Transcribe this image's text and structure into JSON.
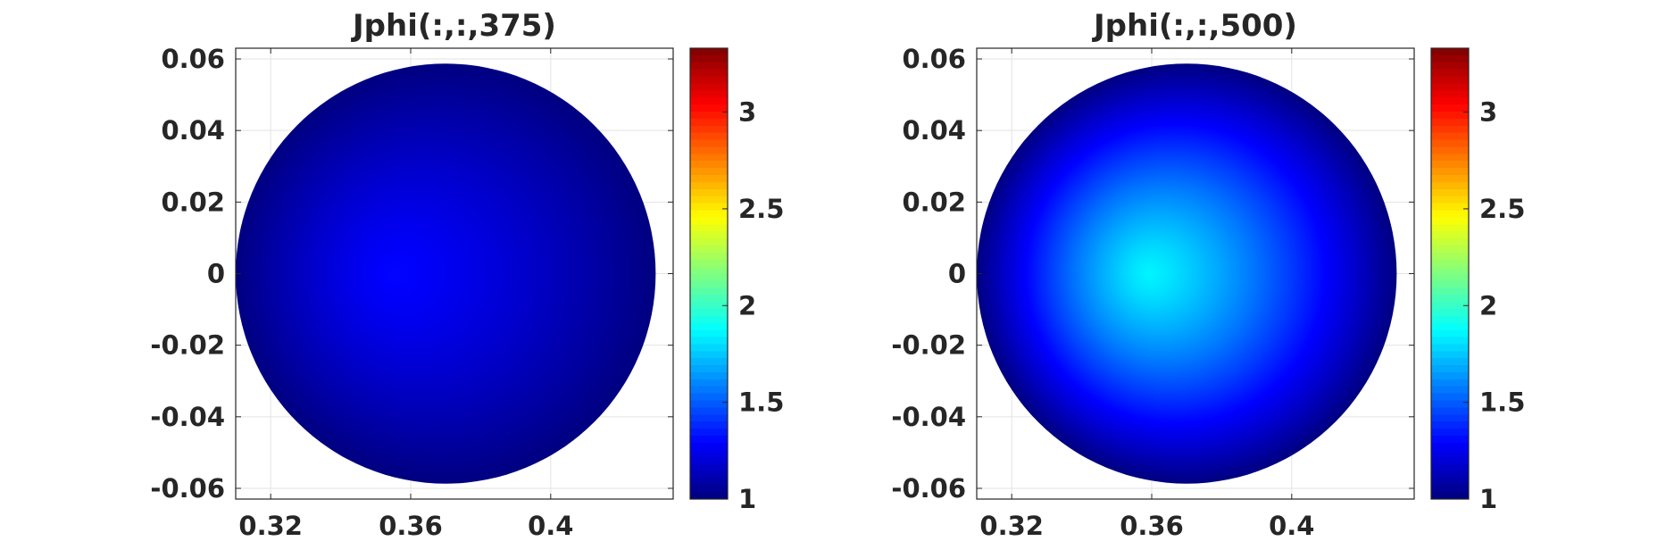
{
  "chart_data": [
    {
      "type": "heatmap",
      "title": "Jphi(:,:,375)",
      "xlabel": "",
      "ylabel": "",
      "xlim": [
        0.31,
        0.435
      ],
      "ylim": [
        -0.063,
        0.063
      ],
      "x_ticks": [
        0.32,
        0.36,
        0.4
      ],
      "x_tick_labels": [
        "0.32",
        "0.36",
        "0.4"
      ],
      "y_ticks": [
        0.06,
        0.04,
        0.02,
        0,
        -0.02,
        -0.04,
        -0.06
      ],
      "y_tick_labels": [
        "0.06",
        "0.04",
        "0.02",
        "0",
        "-0.02",
        "-0.04",
        "-0.06"
      ],
      "grid": true,
      "region": {
        "shape": "disk",
        "center_x": 0.37,
        "center_y": 0,
        "radius": 0.06
      },
      "field": {
        "peak_x": 0.355,
        "peak_y": 0,
        "peak_value": 1.3,
        "edge_value": 1.0
      },
      "colorbar": {
        "colormap": "jet",
        "range": [
          1,
          3.33
        ],
        "ticks": [
          1,
          1.5,
          2,
          2.5,
          3
        ],
        "tick_labels": [
          "1",
          "1.5",
          "2",
          "2.5",
          "3"
        ]
      }
    },
    {
      "type": "heatmap",
      "title": "Jphi(:,:,500)",
      "xlabel": "",
      "ylabel": "",
      "xlim": [
        0.31,
        0.435
      ],
      "ylim": [
        -0.063,
        0.063
      ],
      "x_ticks": [
        0.32,
        0.36,
        0.4
      ],
      "x_tick_labels": [
        "0.32",
        "0.36",
        "0.4"
      ],
      "y_ticks": [
        0.06,
        0.04,
        0.02,
        0,
        -0.02,
        -0.04,
        -0.06
      ],
      "y_tick_labels": [
        "0.06",
        "0.04",
        "0.02",
        "0",
        "-0.02",
        "-0.04",
        "-0.06"
      ],
      "grid": true,
      "region": {
        "shape": "disk",
        "center_x": 0.37,
        "center_y": 0,
        "radius": 0.06
      },
      "field": {
        "peak_x": 0.359,
        "peak_y": 0,
        "peak_value": 1.85,
        "edge_value": 1.0
      },
      "colorbar": {
        "colormap": "jet",
        "range": [
          1,
          3.33
        ],
        "ticks": [
          1,
          1.5,
          2,
          2.5,
          3
        ],
        "tick_labels": [
          "1",
          "1.5",
          "2",
          "2.5",
          "3"
        ]
      }
    }
  ]
}
